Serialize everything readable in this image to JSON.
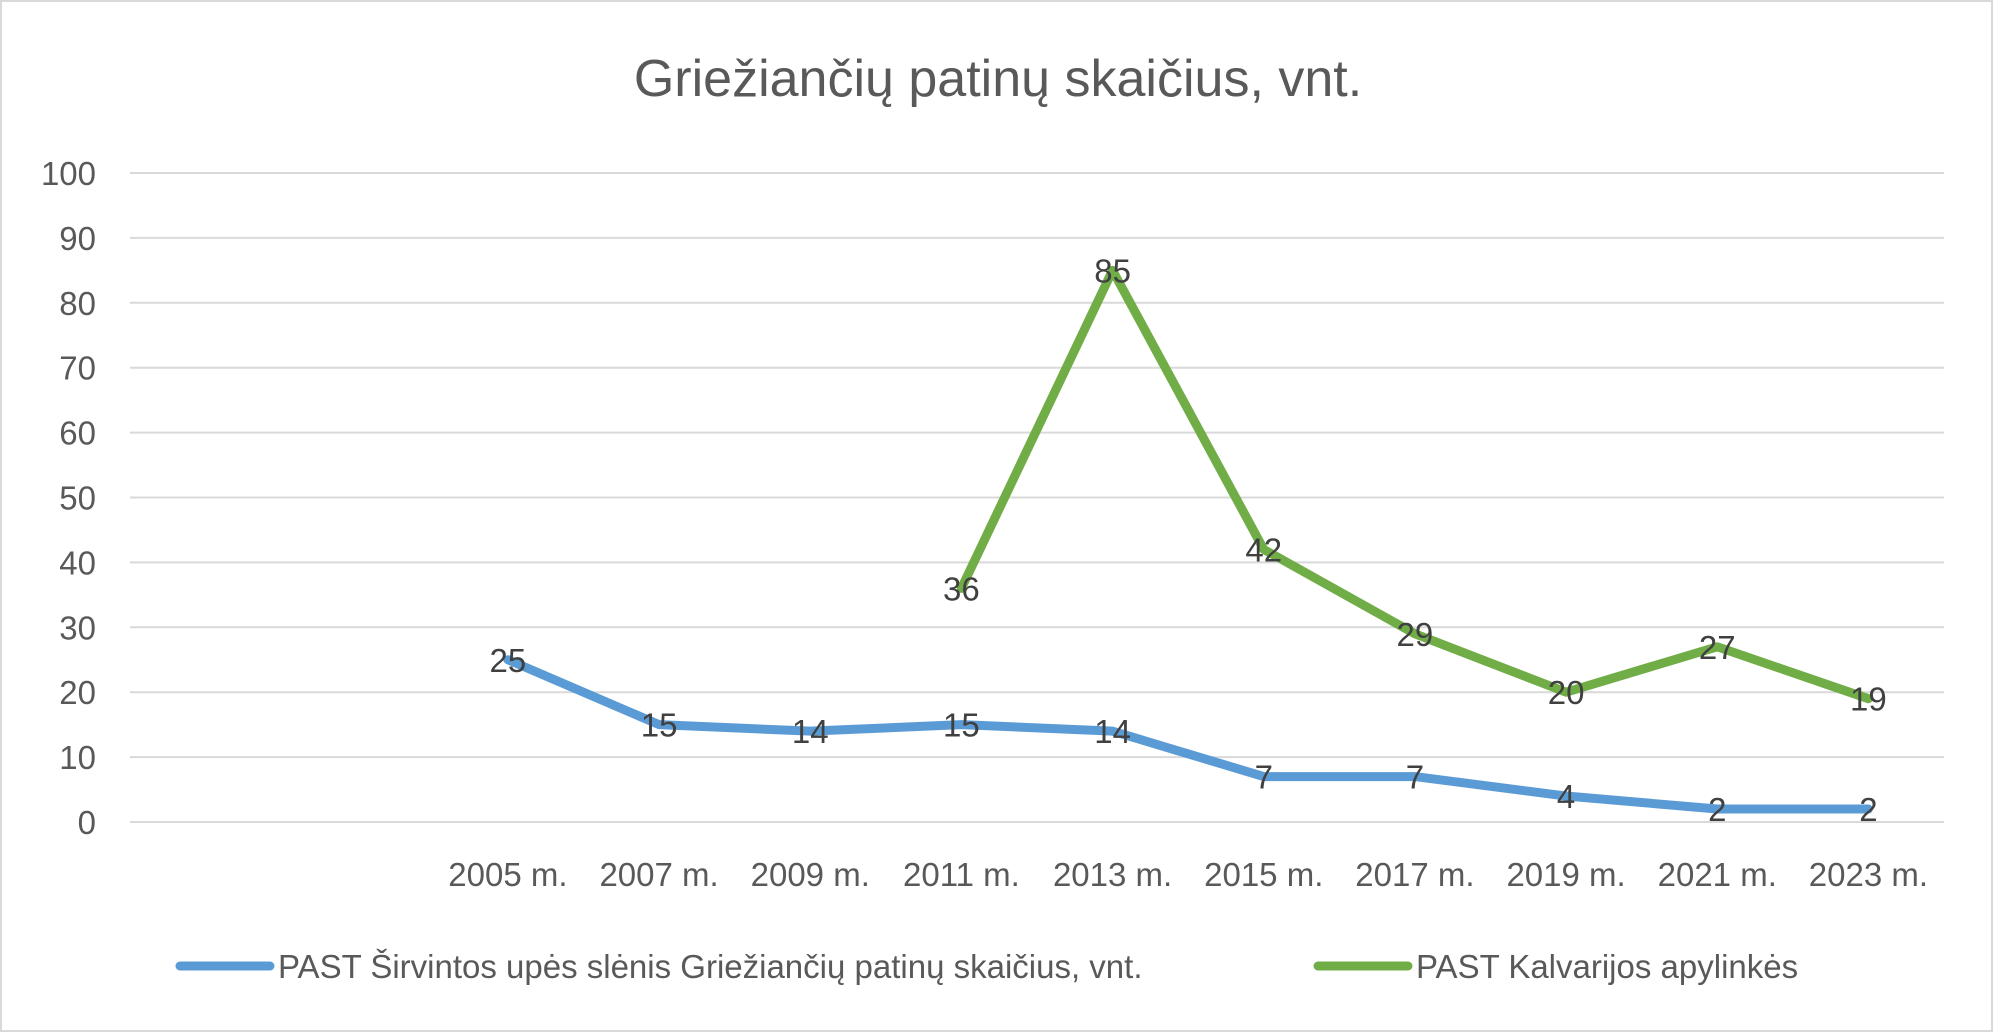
{
  "chart_data": {
    "type": "line",
    "title": "Griežiančių patinų skaičius, vnt.",
    "xlabel": "",
    "ylabel": "",
    "categories": [
      "",
      "",
      "2005 m.",
      "2007 m.",
      "2009 m.",
      "2011 m.",
      "2013 m.",
      "2015 m.",
      "2017 m.",
      "2019 m.",
      "2021 m.",
      "2023 m."
    ],
    "ylim": [
      0,
      100
    ],
    "yticks": [
      "0",
      "10",
      "20",
      "30",
      "40",
      "50",
      "60",
      "70",
      "80",
      "90",
      "100"
    ],
    "grid": true,
    "legend_position": "bottom",
    "series": [
      {
        "name": "PAST Širvintos upės slėnis Griežiančių patinų skaičius, vnt.",
        "color": "#5b9bd5",
        "values": [
          null,
          null,
          25,
          15,
          14,
          15,
          14,
          7,
          7,
          4,
          2,
          2
        ]
      },
      {
        "name": "PAST Kalvarijos apylinkės",
        "color": "#70ad47",
        "values": [
          null,
          null,
          null,
          null,
          null,
          36,
          85,
          42,
          29,
          20,
          27,
          19
        ]
      }
    ]
  }
}
